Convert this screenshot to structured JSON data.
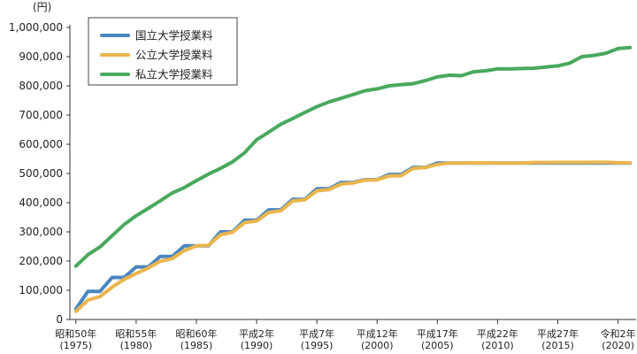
{
  "chart_data": {
    "type": "line",
    "unit_label": "(円)",
    "y_ticks": [
      "1,000,000",
      "900,000",
      "800,000",
      "700,000",
      "600,000",
      "500,000",
      "400,000",
      "300,000",
      "200,000",
      "100,000",
      "0"
    ],
    "ylim": [
      0,
      1000000
    ],
    "x_tick_labels": [
      {
        "year": 1975,
        "line1": "昭和50年",
        "line2": "(1975)"
      },
      {
        "year": 1980,
        "line1": "昭和55年",
        "line2": "(1980)"
      },
      {
        "year": 1985,
        "line1": "昭和60年",
        "line2": "(1985)"
      },
      {
        "year": 1990,
        "line1": "平成2年",
        "line2": "(1990)"
      },
      {
        "year": 1995,
        "line1": "平成7年",
        "line2": "(1995)"
      },
      {
        "year": 2000,
        "line1": "平成12年",
        "line2": "(2000)"
      },
      {
        "year": 2005,
        "line1": "平成17年",
        "line2": "(2005)"
      },
      {
        "year": 2010,
        "line1": "平成22年",
        "line2": "(2010)"
      },
      {
        "year": 2015,
        "line1": "平成27年",
        "line2": "(2015)"
      },
      {
        "year": 2020,
        "line1": "令和2年",
        "line2": "(2020)"
      }
    ],
    "x": [
      1975,
      1976,
      1977,
      1978,
      1979,
      1980,
      1981,
      1982,
      1983,
      1984,
      1985,
      1986,
      1987,
      1988,
      1989,
      1990,
      1991,
      1992,
      1993,
      1994,
      1995,
      1996,
      1997,
      1998,
      1999,
      2000,
      2001,
      2002,
      2003,
      2004,
      2005,
      2006,
      2007,
      2008,
      2009,
      2010,
      2011,
      2012,
      2013,
      2014,
      2015,
      2016,
      2017,
      2018,
      2019,
      2020,
      2021
    ],
    "legend_position": "top-left",
    "grid": false,
    "series": [
      {
        "name": "国立大学授業料",
        "color": "#4a86c0",
        "values": [
          36000,
          96000,
          96000,
          144000,
          144000,
          180000,
          180000,
          216000,
          216000,
          252000,
          252000,
          252000,
          300000,
          300000,
          339600,
          339600,
          375600,
          375600,
          411600,
          411600,
          447600,
          447600,
          469200,
          469200,
          478800,
          478800,
          496800,
          496800,
          520800,
          520800,
          535800,
          535800,
          535800,
          535800,
          535800,
          535800,
          535800,
          535800,
          535800,
          535800,
          535800,
          535800,
          535800,
          535800,
          535800,
          535800,
          535800
        ]
      },
      {
        "name": "公立大学授業料",
        "color": "#eab54d",
        "values": [
          27847,
          66582,
          78141,
          110691,
          137262,
          157412,
          176107,
          198942,
          208434,
          236131,
          252090,
          254069,
          290408,
          298523,
          331686,
          337175,
          366627,
          372160,
          405840,
          409578,
          440471,
          444506,
          463629,
          467229,
          477370,
          477969,
          491798,
          492351,
          517646,
          520407,
          530895,
          535700,
          535800,
          536400,
          536400,
          535800,
          535800,
          535800,
          537600,
          537600,
          537800,
          537800,
          537800,
          538300,
          538300,
          536600,
          536400
        ]
      },
      {
        "name": "私立大学授業料",
        "color": "#49a95d",
        "values": [
          182677,
          221844,
          248066,
          286568,
          325198,
          355156,
          380253,
          406261,
          433200,
          451722,
          475325,
          497826,
          517395,
          539591,
          570584,
          615486,
          641608,
          668552,
          688046,
          708847,
          728365,
          744733,
          757158,
          770024,
          783298,
          789659,
          799973,
          804367,
          807413,
          817952,
          830583,
          836297,
          834751,
          848178,
          851621,
          858265,
          857763,
          859367,
          860266,
          864384,
          868447,
          877735,
          900093,
          904146,
          911716,
          927705,
          930943
        ]
      }
    ]
  }
}
